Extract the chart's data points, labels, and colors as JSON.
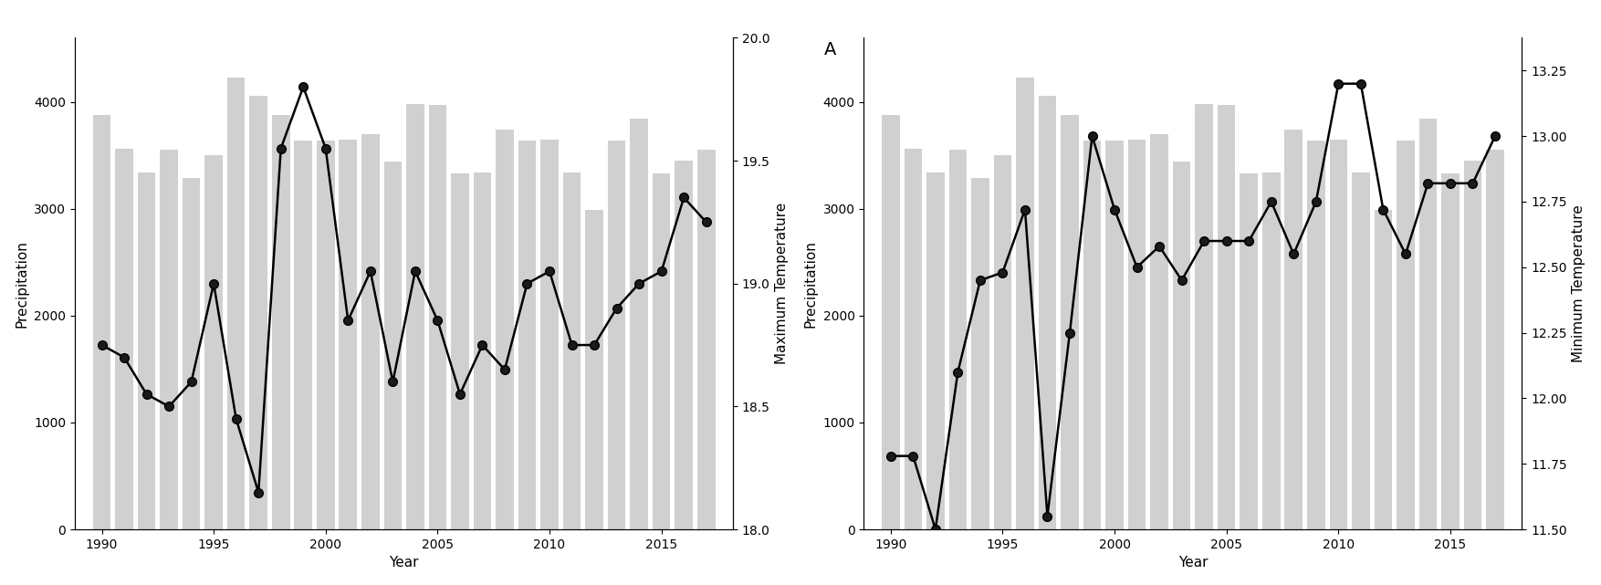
{
  "years": [
    1990,
    1991,
    1992,
    1993,
    1994,
    1995,
    1996,
    1997,
    1998,
    1999,
    2000,
    2001,
    2002,
    2003,
    2004,
    2005,
    2006,
    2007,
    2008,
    2009,
    2010,
    2011,
    2012,
    2013,
    2014,
    2015,
    2016,
    2017
  ],
  "precipitation": [
    3880,
    3560,
    3340,
    3550,
    3290,
    3500,
    4230,
    4060,
    3880,
    3640,
    3640,
    3650,
    3700,
    3440,
    3980,
    3970,
    3330,
    3340,
    3740,
    3640,
    3650,
    3340,
    2990,
    3640,
    3840,
    3330,
    3450,
    3550
  ],
  "max_temp": [
    18.75,
    18.7,
    18.55,
    18.5,
    18.6,
    19.0,
    18.45,
    18.15,
    19.55,
    19.8,
    19.55,
    18.85,
    19.05,
    18.6,
    19.05,
    18.85,
    18.55,
    18.75,
    18.65,
    19.0,
    19.05,
    18.75,
    18.75,
    18.9,
    19.0,
    19.05,
    19.35,
    19.25
  ],
  "min_temp": [
    11.78,
    11.78,
    11.5,
    12.1,
    12.45,
    12.48,
    12.72,
    11.55,
    12.25,
    13.0,
    12.72,
    12.5,
    12.58,
    12.45,
    12.6,
    12.6,
    12.6,
    12.75,
    12.55,
    12.75,
    13.2,
    13.2,
    12.72,
    12.55,
    12.82,
    12.82,
    12.82,
    13.0
  ],
  "max_temp_ylim": [
    18.0,
    20.0
  ],
  "max_temp_yticks": [
    18.0,
    18.5,
    19.0,
    19.5,
    20.0
  ],
  "min_temp_ylim": [
    11.5,
    13.375
  ],
  "min_temp_yticks": [
    11.5,
    11.75,
    12.0,
    12.25,
    12.5,
    12.75,
    13.0,
    13.25
  ],
  "precip_ylim": [
    0,
    4600
  ],
  "precip_yticks": [
    0,
    1000,
    2000,
    3000,
    4000
  ],
  "bar_color": "#d0d0d0",
  "line_color": "#000000",
  "marker": "o",
  "marker_facecolor": "#1a1a1a",
  "marker_edgecolor": "#000000",
  "markersize": 7,
  "linewidth": 1.8,
  "left_ylabel": "Precipitation",
  "right_ylabel_left": "Maximum Temperature",
  "right_ylabel_right": "Minimum Temperature",
  "xlabel": "Year",
  "xticks": [
    1990,
    1995,
    2000,
    2005,
    2010,
    2015
  ],
  "xlim": [
    1988.8,
    2018.2
  ],
  "annotation": "A",
  "annotation_fontsize": 14
}
